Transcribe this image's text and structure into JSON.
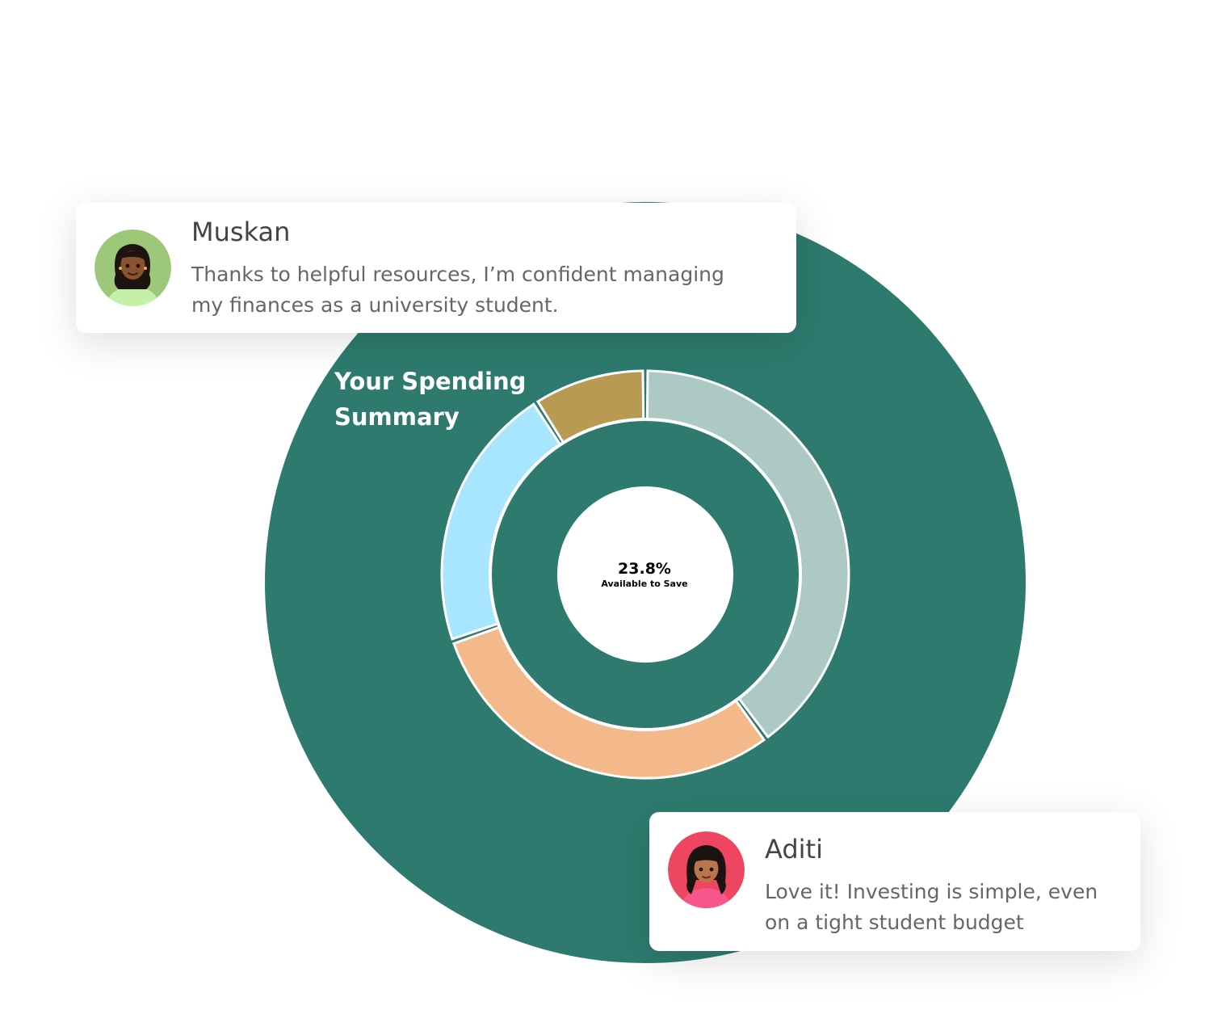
{
  "chart_data": {
    "type": "pie",
    "title": "Your Spending Summary",
    "center_value": "23.8%",
    "center_caption": "Available to Save",
    "slices": [
      {
        "value": 37.5,
        "color": "#adc9c4"
      },
      {
        "value": 28.0,
        "color": "#f4b98a"
      },
      {
        "value": 20.0,
        "color": "#a8e6ff"
      },
      {
        "value": 8.5,
        "color": "#b89a52"
      }
    ]
  },
  "colors": {
    "background_circle": "#2e7a6e",
    "inner_ring": "#2e7a6e",
    "center": "#ffffff",
    "separator": "#ffffff"
  },
  "testimonials": [
    {
      "name": "Muskan",
      "text": "Thanks to helpful resources, I’m confident managing\n my finances as a university student.",
      "avatar_icon": "avatar-muskan-icon",
      "avatar_bg": "#9dc87a"
    },
    {
      "name": "Aditi",
      "text": "Love it! Investing is simple, even\non a tight student budget",
      "avatar_icon": "avatar-aditi-icon",
      "avatar_bg": "#ee4560"
    }
  ]
}
